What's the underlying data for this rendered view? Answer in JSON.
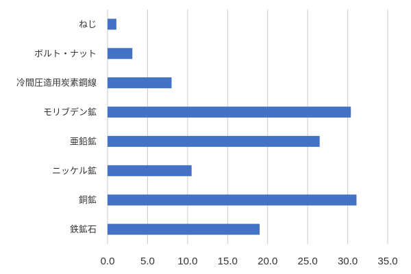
{
  "chart_data": {
    "type": "bar",
    "orientation": "horizontal",
    "categories": [
      "ねじ",
      "ボルト・ナット",
      "冷間圧造用炭素鋼線",
      "モリブデン鉱",
      "亜鉛鉱",
      "ニッケル鉱",
      "銅鉱",
      "鉄鉱石"
    ],
    "values": [
      1.1,
      3.1,
      8.0,
      30.4,
      26.5,
      10.5,
      31.1,
      19.0
    ],
    "x_ticks": [
      "0.0",
      "5.0",
      "10.0",
      "15.0",
      "20.0",
      "25.0",
      "30.0",
      "35.0"
    ],
    "xlim": [
      0,
      35
    ],
    "grid": "vertical",
    "legend": "none",
    "colors": {
      "bar": "#4472c4",
      "grid": "#c8c8c8",
      "text": "#333333"
    }
  }
}
